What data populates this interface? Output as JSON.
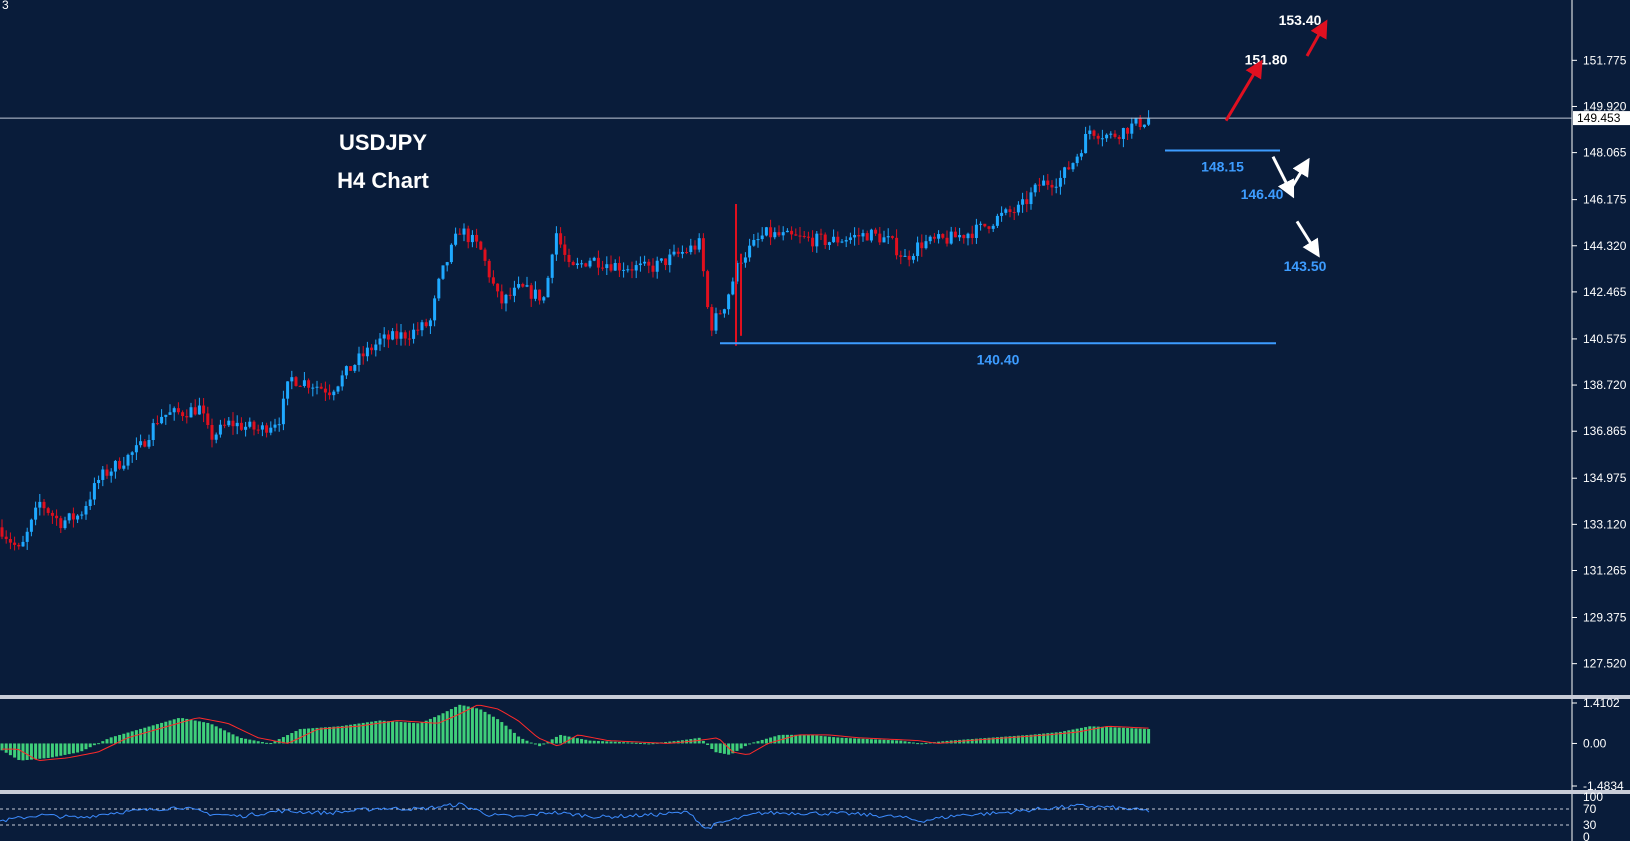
{
  "chart_data": [
    {
      "type": "candlestick",
      "panel": "price",
      "title": "USDJPY",
      "subtitle": "H4 Chart",
      "corner_label": "3",
      "ylim": [
        126.3,
        154.2
      ],
      "yticks": [
        "151.775",
        "149.920",
        "148.065",
        "146.175",
        "144.320",
        "142.465",
        "140.575",
        "138.720",
        "136.865",
        "134.975",
        "133.120",
        "131.265",
        "129.375",
        "127.520"
      ],
      "current_price": "149.453",
      "price_path": [
        [
          0,
          133.0
        ],
        [
          20,
          132.0
        ],
        [
          40,
          134.0
        ],
        [
          60,
          133.2
        ],
        [
          80,
          133.5
        ],
        [
          100,
          135.0
        ],
        [
          120,
          135.6
        ],
        [
          140,
          136.2
        ],
        [
          160,
          137.5
        ],
        [
          180,
          137.6
        ],
        [
          200,
          137.8
        ],
        [
          210,
          136.6
        ],
        [
          230,
          137.2
        ],
        [
          260,
          136.9
        ],
        [
          280,
          137.4
        ],
        [
          290,
          139.0
        ],
        [
          310,
          138.8
        ],
        [
          330,
          138.5
        ],
        [
          360,
          139.8
        ],
        [
          380,
          140.5
        ],
        [
          410,
          140.8
        ],
        [
          430,
          141.2
        ],
        [
          440,
          143.0
        ],
        [
          460,
          145.0
        ],
        [
          480,
          144.2
        ],
        [
          500,
          142.0
        ],
        [
          520,
          142.6
        ],
        [
          545,
          142.2
        ],
        [
          555,
          145.0
        ],
        [
          570,
          143.3
        ],
        [
          590,
          143.8
        ],
        [
          620,
          143.5
        ],
        [
          650,
          143.4
        ],
        [
          680,
          144.0
        ],
        [
          700,
          144.4
        ],
        [
          710,
          141.0
        ],
        [
          725,
          142.0
        ],
        [
          740,
          143.8
        ],
        [
          765,
          144.8
        ],
        [
          800,
          144.6
        ],
        [
          830,
          144.5
        ],
        [
          870,
          144.8
        ],
        [
          890,
          144.5
        ],
        [
          905,
          143.8
        ],
        [
          920,
          144.4
        ],
        [
          950,
          144.6
        ],
        [
          980,
          145.0
        ],
        [
          1000,
          145.5
        ],
        [
          1020,
          145.8
        ],
        [
          1040,
          146.8
        ],
        [
          1060,
          147.0
        ],
        [
          1075,
          147.8
        ],
        [
          1090,
          149.0
        ],
        [
          1110,
          148.7
        ],
        [
          1130,
          149.1
        ],
        [
          1150,
          149.45
        ]
      ],
      "levels": [
        {
          "value": 140.4,
          "label": "140.40",
          "color": "#3d9cff"
        },
        {
          "value": 148.15,
          "label": "148.15",
          "color": "#3d9cff"
        }
      ],
      "annotations": [
        {
          "text": "153.40",
          "value": 153.4,
          "color": "#ffffff"
        },
        {
          "text": "151.80",
          "value": 151.8,
          "color": "#ffffff"
        },
        {
          "text": "146.40",
          "value": 146.4,
          "color": "#3d9cff"
        },
        {
          "text": "143.50",
          "value": 143.5,
          "color": "#3d9cff"
        }
      ],
      "colors": {
        "background": "#091c3a",
        "bull": "#1fa9ff",
        "bear": "#e0101e",
        "grid_line": "#c0c8d8",
        "arrow_up": "#e01020",
        "arrow_alt": "#ffffff"
      }
    },
    {
      "type": "bar",
      "panel": "macd",
      "ylim": [
        -1.4834,
        1.4102
      ],
      "yticks": [
        "1.4102",
        "0.00",
        "-1.4834"
      ],
      "hist_path": [
        [
          0,
          -0.2
        ],
        [
          20,
          -0.6
        ],
        [
          50,
          -0.5
        ],
        [
          80,
          -0.3
        ],
        [
          110,
          0.2
        ],
        [
          140,
          0.5
        ],
        [
          180,
          0.9
        ],
        [
          210,
          0.7
        ],
        [
          240,
          0.2
        ],
        [
          270,
          0.0
        ],
        [
          300,
          0.5
        ],
        [
          340,
          0.6
        ],
        [
          380,
          0.8
        ],
        [
          420,
          0.7
        ],
        [
          440,
          1.0
        ],
        [
          460,
          1.35
        ],
        [
          480,
          1.2
        ],
        [
          500,
          0.8
        ],
        [
          520,
          0.2
        ],
        [
          540,
          -0.1
        ],
        [
          560,
          0.3
        ],
        [
          590,
          0.1
        ],
        [
          620,
          0.05
        ],
        [
          650,
          0.0
        ],
        [
          680,
          0.1
        ],
        [
          700,
          0.2
        ],
        [
          715,
          -0.3
        ],
        [
          730,
          -0.4
        ],
        [
          750,
          0.0
        ],
        [
          780,
          0.3
        ],
        [
          810,
          0.3
        ],
        [
          840,
          0.2
        ],
        [
          870,
          0.15
        ],
        [
          900,
          0.1
        ],
        [
          920,
          0.0
        ],
        [
          950,
          0.1
        ],
        [
          990,
          0.2
        ],
        [
          1030,
          0.3
        ],
        [
          1060,
          0.4
        ],
        [
          1090,
          0.6
        ],
        [
          1120,
          0.55
        ],
        [
          1150,
          0.5
        ]
      ],
      "colors": {
        "bar": "#3fcf7a",
        "signal": "#ff2a2a"
      }
    },
    {
      "type": "line",
      "panel": "rsi",
      "ylim": [
        0,
        100
      ],
      "yticks": [
        "100",
        "70",
        "30",
        "0"
      ],
      "levels": [
        70,
        30
      ],
      "rsi_path": [
        [
          0,
          40
        ],
        [
          40,
          55
        ],
        [
          80,
          48
        ],
        [
          110,
          60
        ],
        [
          150,
          68
        ],
        [
          180,
          75
        ],
        [
          210,
          58
        ],
        [
          240,
          52
        ],
        [
          280,
          65
        ],
        [
          330,
          60
        ],
        [
          380,
          72
        ],
        [
          420,
          70
        ],
        [
          460,
          82
        ],
        [
          490,
          55
        ],
        [
          520,
          50
        ],
        [
          550,
          62
        ],
        [
          600,
          50
        ],
        [
          650,
          55
        ],
        [
          690,
          62
        ],
        [
          705,
          20
        ],
        [
          720,
          35
        ],
        [
          760,
          60
        ],
        [
          800,
          60
        ],
        [
          850,
          58
        ],
        [
          900,
          50
        ],
        [
          920,
          40
        ],
        [
          960,
          55
        ],
        [
          1000,
          60
        ],
        [
          1040,
          70
        ],
        [
          1080,
          78
        ],
        [
          1110,
          74
        ],
        [
          1150,
          65
        ]
      ],
      "colors": {
        "line": "#3d8cff"
      }
    }
  ]
}
